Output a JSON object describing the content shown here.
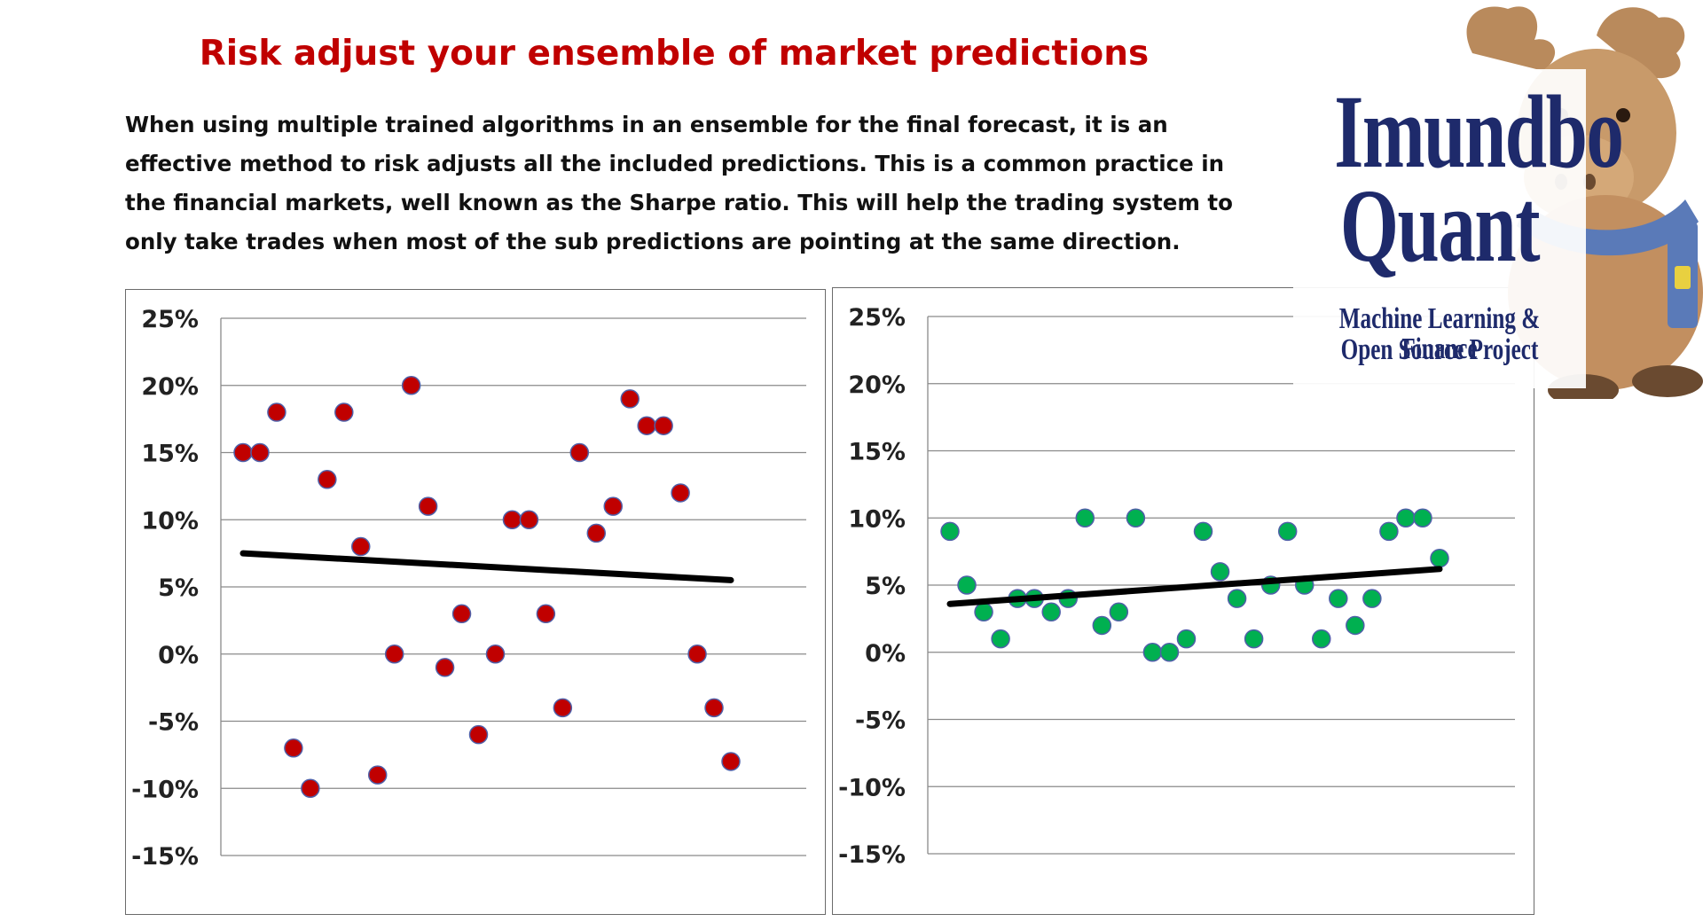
{
  "title": "Risk adjust your ensemble of market predictions",
  "intro": "When using multiple trained algorithms in an ensemble for the final forecast, it is an effective method to risk adjusts all the included predictions. This is a common practice in the financial markets, well known as the Sharpe ratio. This will help the trading system to only take trades when most of the sub predictions are pointing at the same direction.",
  "logo": {
    "name_line1": "Imundbo",
    "name_line2": "Quant",
    "tagline_line1": "Machine Learning & Finance",
    "tagline_line2": "Open Source Project",
    "navy": "#1e2a6b",
    "image": "moose-plush-mascot"
  },
  "colors": {
    "title": "#c00000",
    "left_points": "#c00000",
    "right_points": "#00b050",
    "point_outline": "#4f5fa8",
    "trendline": "#000000",
    "gridline": "#8a8a8a"
  },
  "chart_data": [
    {
      "type": "scatter",
      "title": "",
      "xlabel": "",
      "ylabel": "",
      "ylim": [
        -0.15,
        0.25
      ],
      "yticks": [
        "25%",
        "20%",
        "15%",
        "10%",
        "5%",
        "0%",
        "-5%",
        "-10%",
        "-15%"
      ],
      "grid": true,
      "legend": "none",
      "series": [
        {
          "points": [
            [
              1,
              0.15
            ],
            [
              2,
              0.15
            ],
            [
              3,
              0.18
            ],
            [
              4,
              -0.07
            ],
            [
              5,
              -0.1
            ],
            [
              6,
              0.13
            ],
            [
              7,
              0.18
            ],
            [
              8,
              0.08
            ],
            [
              9,
              -0.09
            ],
            [
              10,
              0.0
            ],
            [
              11,
              0.2
            ],
            [
              12,
              0.11
            ],
            [
              13,
              -0.01
            ],
            [
              14,
              0.03
            ],
            [
              15,
              -0.06
            ],
            [
              16,
              0.0
            ],
            [
              17,
              0.1
            ],
            [
              18,
              0.1
            ],
            [
              19,
              0.03
            ],
            [
              20,
              -0.04
            ],
            [
              21,
              0.15
            ],
            [
              22,
              0.09
            ],
            [
              23,
              0.11
            ],
            [
              24,
              0.19
            ],
            [
              25,
              0.17
            ],
            [
              26,
              0.17
            ],
            [
              27,
              0.12
            ],
            [
              28,
              0.0
            ],
            [
              29,
              -0.04
            ],
            [
              30,
              -0.08
            ]
          ]
        }
      ],
      "trendline": {
        "x": [
          1,
          30
        ],
        "y": [
          0.075,
          0.055
        ]
      }
    },
    {
      "type": "scatter",
      "title": "",
      "xlabel": "",
      "ylabel": "",
      "ylim": [
        -0.15,
        0.25
      ],
      "yticks": [
        "25%",
        "20%",
        "15%",
        "10%",
        "5%",
        "0%",
        "-5%",
        "-10%",
        "-15%"
      ],
      "grid": true,
      "legend": "none",
      "series": [
        {
          "points": [
            [
              1,
              0.09
            ],
            [
              2,
              0.05
            ],
            [
              3,
              0.03
            ],
            [
              4,
              0.01
            ],
            [
              5,
              0.04
            ],
            [
              6,
              0.04
            ],
            [
              7,
              0.03
            ],
            [
              8,
              0.04
            ],
            [
              9,
              0.1
            ],
            [
              10,
              0.02
            ],
            [
              11,
              0.03
            ],
            [
              12,
              0.1
            ],
            [
              13,
              0.0
            ],
            [
              14,
              0.0
            ],
            [
              15,
              0.01
            ],
            [
              16,
              0.09
            ],
            [
              17,
              0.06
            ],
            [
              18,
              0.04
            ],
            [
              19,
              0.01
            ],
            [
              20,
              0.05
            ],
            [
              21,
              0.09
            ],
            [
              22,
              0.05
            ],
            [
              23,
              0.01
            ],
            [
              24,
              0.04
            ],
            [
              25,
              0.02
            ],
            [
              26,
              0.04
            ],
            [
              27,
              0.09
            ],
            [
              28,
              0.1
            ],
            [
              29,
              0.1
            ],
            [
              30,
              0.07
            ]
          ]
        }
      ],
      "trendline": {
        "x": [
          1,
          30
        ],
        "y": [
          0.036,
          0.062
        ]
      }
    }
  ]
}
